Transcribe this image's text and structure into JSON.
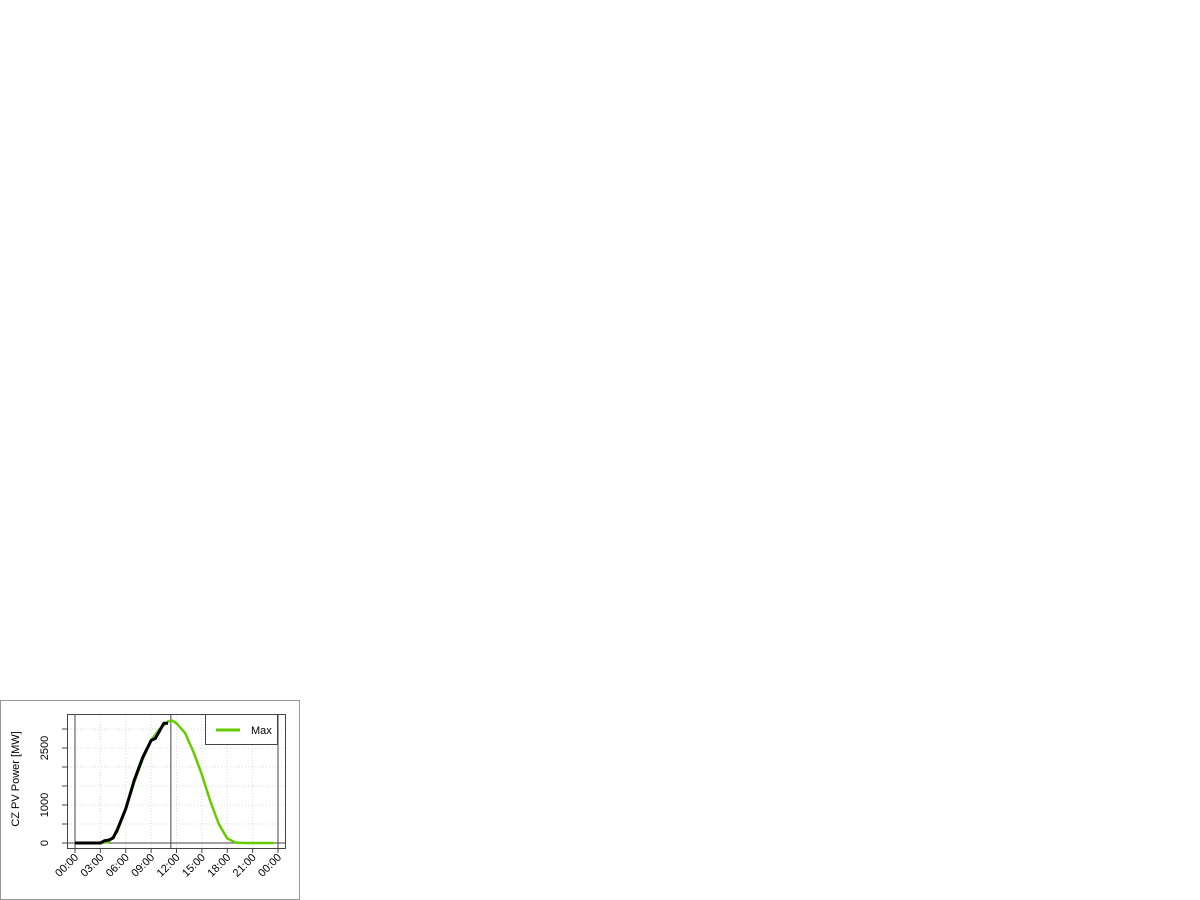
{
  "chart_data": {
    "type": "line",
    "title": "",
    "xlabel": "",
    "ylabel": "CZ PV Power [MW]",
    "xlim_hours": [
      0,
      24
    ],
    "ylim": [
      0,
      3300
    ],
    "x_tick_labels": [
      "00:00",
      "03:00",
      "06:00",
      "09:00",
      "12:00",
      "15:00",
      "18:00",
      "21:00",
      "00:00"
    ],
    "y_ticks": [
      0,
      500,
      1000,
      1500,
      2000,
      2500,
      3000
    ],
    "y_tick_labels": [
      {
        "value": 0,
        "label": "0"
      },
      {
        "value": 1000,
        "label": "1000"
      },
      {
        "value": 2500,
        "label": "2500"
      }
    ],
    "grid": true,
    "current_time_marker": "11:20",
    "legend": {
      "position": "top-right",
      "entries": [
        {
          "name": "Max",
          "color": "#66cc00"
        }
      ]
    },
    "series": [
      {
        "name": "Max",
        "color": "#66cc00",
        "x": [
          "00:00",
          "01:00",
          "02:00",
          "03:00",
          "04:00",
          "05:00",
          "06:00",
          "07:00",
          "08:00",
          "09:00",
          "10:00",
          "11:00",
          "11:30",
          "12:00",
          "13:00",
          "14:00",
          "15:00",
          "16:00",
          "17:00",
          "18:00",
          "19:00",
          "20:00",
          "21:00",
          "22:00",
          "23:00",
          "23:30"
        ],
        "values": [
          0,
          0,
          0,
          0,
          30,
          300,
          900,
          1600,
          2200,
          2700,
          3000,
          3200,
          3220,
          3150,
          2900,
          2400,
          1800,
          1100,
          500,
          120,
          10,
          0,
          0,
          0,
          0,
          0
        ]
      },
      {
        "color": "#000000",
        "x": [
          "00:00",
          "01:00",
          "02:00",
          "03:00",
          "03:30",
          "04:00",
          "04:30",
          "05:00",
          "06:00",
          "07:00",
          "08:00",
          "09:00",
          "09:30",
          "10:00",
          "10:30",
          "11:00"
        ],
        "values": [
          0,
          0,
          0,
          0,
          60,
          80,
          130,
          350,
          900,
          1650,
          2250,
          2700,
          2750,
          2950,
          3150,
          3150
        ]
      }
    ]
  }
}
